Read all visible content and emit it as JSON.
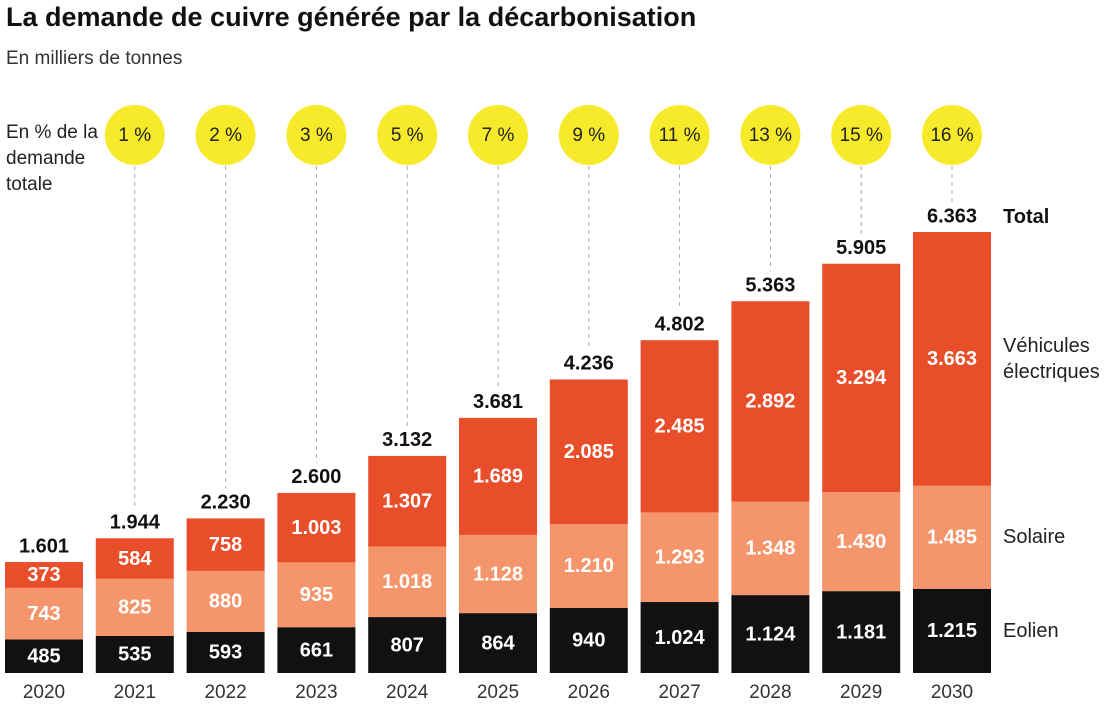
{
  "chart_data": {
    "type": "bar",
    "stacked": true,
    "title": "La demande de cuivre générée par la décarbonisation",
    "subtitle": "En milliers de tonnes",
    "categories": [
      "2020",
      "2021",
      "2022",
      "2023",
      "2024",
      "2025",
      "2026",
      "2027",
      "2028",
      "2029",
      "2030"
    ],
    "series": [
      {
        "name": "Eolien",
        "color": "#111111",
        "values": [
          485,
          535,
          593,
          661,
          807,
          864,
          940,
          1024,
          1124,
          1181,
          1215
        ],
        "value_labels": [
          "485",
          "535",
          "593",
          "661",
          "807",
          "864",
          "940",
          "1.024",
          "1.124",
          "1.181",
          "1.215"
        ]
      },
      {
        "name": "Solaire",
        "color": "#f4956b",
        "values": [
          743,
          825,
          880,
          935,
          1018,
          1128,
          1210,
          1293,
          1348,
          1430,
          1485
        ],
        "value_labels": [
          "743",
          "825",
          "880",
          "935",
          "1.018",
          "1.128",
          "1.210",
          "1.293",
          "1.348",
          "1.430",
          "1.485"
        ]
      },
      {
        "name": "Véhicules électriques",
        "color": "#e94e2b",
        "values": [
          373,
          584,
          758,
          1003,
          1307,
          1689,
          2085,
          2485,
          2892,
          3294,
          3663
        ],
        "value_labels": [
          "373",
          "584",
          "758",
          "1.003",
          "1.307",
          "1.689",
          "2.085",
          "2.485",
          "2.892",
          "3.294",
          "3.663"
        ]
      }
    ],
    "totals": {
      "name": "Total",
      "values": [
        1601,
        1944,
        2230,
        2600,
        3132,
        3681,
        4236,
        4802,
        5363,
        5905,
        6363
      ],
      "value_labels": [
        "1.601",
        "1.944",
        "2.230",
        "2.600",
        "3.132",
        "3.681",
        "4.236",
        "4.802",
        "5.363",
        "5.905",
        "6.363"
      ]
    },
    "share": {
      "label": "En % de la demande totale",
      "color": "#f7ea2b",
      "values": [
        null,
        1,
        2,
        3,
        5,
        7,
        9,
        11,
        13,
        15,
        16
      ],
      "value_labels": [
        null,
        "1 %",
        "2 %",
        "3 %",
        "5 %",
        "7 %",
        "9 %",
        "11 %",
        "13 %",
        "15 %",
        "16 %"
      ]
    }
  }
}
